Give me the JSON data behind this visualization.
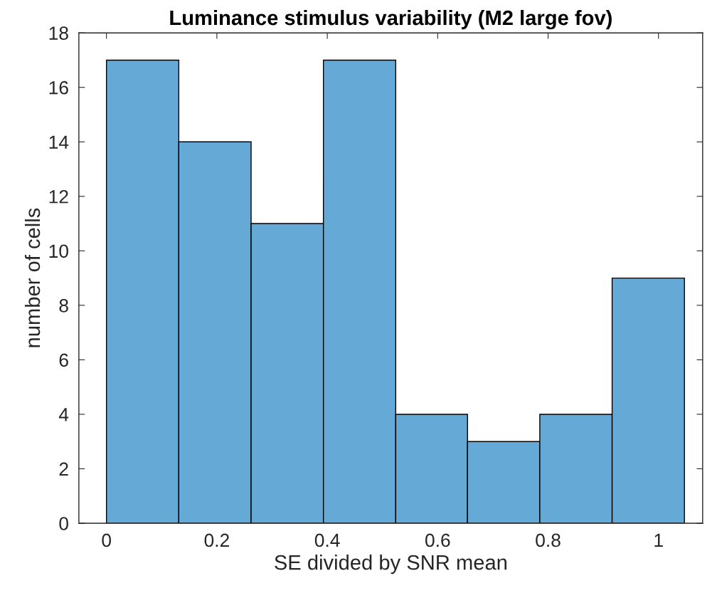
{
  "chart_data": {
    "type": "histogram",
    "title": "Luminance stimulus variability (M2 large fov)",
    "xlabel": "SE divided by SNR mean",
    "ylabel": "number of cells",
    "bins": [
      0,
      0.131,
      0.262,
      0.393,
      0.524,
      0.654,
      0.785,
      0.916,
      1.047
    ],
    "values": [
      17,
      14,
      11,
      17,
      4,
      3,
      4,
      9
    ],
    "color": "#65a9d7",
    "xlim": [
      -0.05,
      1.08
    ],
    "ylim": [
      0,
      18
    ],
    "xticks": [
      0,
      0.2,
      0.4,
      0.6,
      0.8,
      1
    ],
    "yticks": [
      0,
      2,
      4,
      6,
      8,
      10,
      12,
      14,
      16,
      18
    ],
    "grid": false
  }
}
